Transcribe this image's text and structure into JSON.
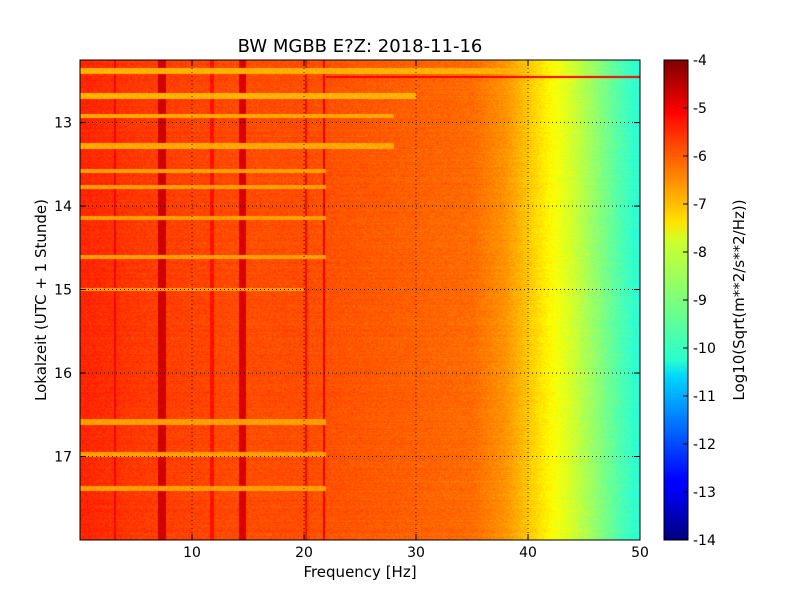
{
  "chart_data": {
    "type": "heatmap",
    "title": "BW MGBB E?Z: 2018-11-16",
    "xlabel": "Frequency [Hz]",
    "ylabel": "Lokalzeit (UTC + 1 Stunde)",
    "xlim": [
      0,
      50
    ],
    "ylim": [
      12.25,
      18.0
    ],
    "y_inverted": true,
    "grid": "dotted",
    "xticks": [
      10,
      20,
      30,
      40,
      50
    ],
    "yticks": [
      13,
      14,
      15,
      16,
      17
    ],
    "colorbar": {
      "label": "Log10(Sqrt(m**2/s**2/Hz))",
      "colormap": "jet",
      "range": [
        -14,
        -4
      ],
      "ticks": [
        -4,
        -5,
        -6,
        -7,
        -8,
        -9,
        -10,
        -11,
        -12,
        -13,
        -14
      ]
    },
    "spectrum_profile": {
      "frequency_hz": [
        0,
        5,
        10,
        15,
        20,
        25,
        30,
        35,
        38,
        40,
        42,
        44,
        46,
        48,
        50
      ],
      "level_log10": [
        -5.6,
        -5.8,
        -5.9,
        -6.0,
        -6.0,
        -6.1,
        -6.2,
        -6.3,
        -6.7,
        -7.2,
        -7.7,
        -8.2,
        -8.8,
        -9.4,
        -9.9
      ]
    },
    "vertical_lines_hz": [
      {
        "f": 7.3,
        "width": 0.7,
        "level": -4.8
      },
      {
        "f": 11.8,
        "width": 0.3,
        "level": -5.4
      },
      {
        "f": 14.5,
        "width": 0.6,
        "level": -4.9
      },
      {
        "f": 20.2,
        "width": 0.2,
        "level": -5.3
      },
      {
        "f": 21.8,
        "width": 0.2,
        "level": -5.1
      },
      {
        "f": 3.1,
        "width": 0.2,
        "level": -5.2
      }
    ],
    "horizontal_bands": [
      {
        "start": 12.35,
        "end": 12.42,
        "fmax": 50,
        "level": -7.0
      },
      {
        "start": 12.65,
        "end": 12.72,
        "fmax": 30,
        "level": -7.0
      },
      {
        "start": 12.9,
        "end": 12.95,
        "fmax": 28,
        "level": -6.9
      },
      {
        "start": 13.25,
        "end": 13.32,
        "fmax": 28,
        "level": -6.9
      },
      {
        "start": 13.55,
        "end": 13.6,
        "fmax": 22,
        "level": -6.8
      },
      {
        "start": 13.75,
        "end": 13.8,
        "fmax": 22,
        "level": -6.8
      },
      {
        "start": 14.12,
        "end": 14.17,
        "fmax": 22,
        "level": -6.8
      },
      {
        "start": 14.58,
        "end": 14.63,
        "fmax": 22,
        "level": -6.8
      },
      {
        "start": 14.98,
        "end": 15.02,
        "fmax": 20,
        "level": -6.8
      },
      {
        "start": 16.55,
        "end": 16.62,
        "fmax": 22,
        "level": -6.8
      },
      {
        "start": 16.95,
        "end": 17.0,
        "fmax": 22,
        "level": -6.8
      },
      {
        "start": 17.35,
        "end": 17.41,
        "fmax": 22,
        "level": -6.8
      }
    ],
    "narrow_line": {
      "time": 12.45,
      "fmin": 22,
      "fmax": 50,
      "level": -5.2
    }
  }
}
